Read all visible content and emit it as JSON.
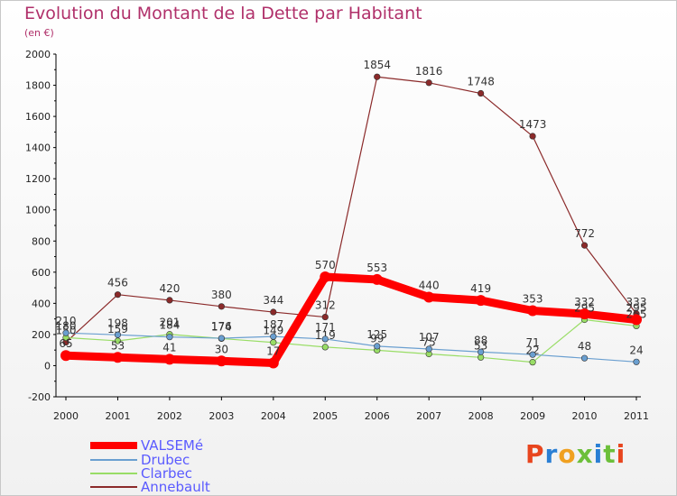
{
  "title": "Evolution du Montant de la Dette par Habitant",
  "subtitle": "(en €)",
  "logo": {
    "text": "Proxiti",
    "colors": [
      "#e8451e",
      "#2a7fd4",
      "#f0a020",
      "#6cbf3a",
      "#2a7fd4",
      "#6cbf3a",
      "#e8451e"
    ]
  },
  "chart_data": {
    "type": "line",
    "x": [
      "2000",
      "2001",
      "2002",
      "2003",
      "2004",
      "2005",
      "2006",
      "2007",
      "2008",
      "2009",
      "2010",
      "2011"
    ],
    "yticks": [
      "2000",
      "1800",
      "1600",
      "1400",
      "1200",
      "1000",
      "800",
      "600",
      "400",
      "200",
      "0",
      "-200"
    ],
    "ylim": [
      -200,
      2000
    ],
    "grid": false,
    "series": [
      {
        "name": "VALSEMé",
        "color": "#ff0000",
        "thick": true,
        "values": [
          65,
          53,
          41,
          30,
          17,
          570,
          553,
          440,
          419,
          353,
          332,
          295
        ],
        "labels": [
          "65",
          "53",
          "41",
          "30",
          "17",
          "570",
          "553",
          "440",
          "419",
          "353",
          "332",
          "295"
        ]
      },
      {
        "name": "Drubec",
        "color": "#6a9fd0",
        "thick": false,
        "values": [
          210,
          198,
          184,
          176,
          187,
          171,
          125,
          107,
          88,
          71,
          48,
          24
        ],
        "labels": [
          "210",
          "198",
          "184",
          "176",
          "187",
          "171",
          "125",
          "107",
          "88",
          "71",
          "48",
          "24"
        ]
      },
      {
        "name": "Clarbec",
        "color": "#99dd66",
        "thick": false,
        "values": [
          180,
          159,
          201,
          174,
          149,
          119,
          99,
          75,
          53,
          22,
          295,
          255
        ],
        "labels": [
          "180",
          "159",
          "201",
          "174",
          "149",
          "119",
          "99",
          "75",
          "53",
          "22",
          "295",
          "255"
        ]
      },
      {
        "name": "Annebault",
        "color": "#8b2a2a",
        "thick": false,
        "values": [
          150,
          456,
          420,
          380,
          344,
          312,
          1854,
          1816,
          1748,
          1473,
          772,
          333
        ],
        "labels": [
          "150",
          "456",
          "420",
          "380",
          "344",
          "312",
          "1854",
          "1816",
          "1748",
          "1473",
          "772",
          "333"
        ]
      }
    ],
    "legend": [
      "VALSEMé",
      "Drubec",
      "Clarbec",
      "Annebault"
    ]
  }
}
